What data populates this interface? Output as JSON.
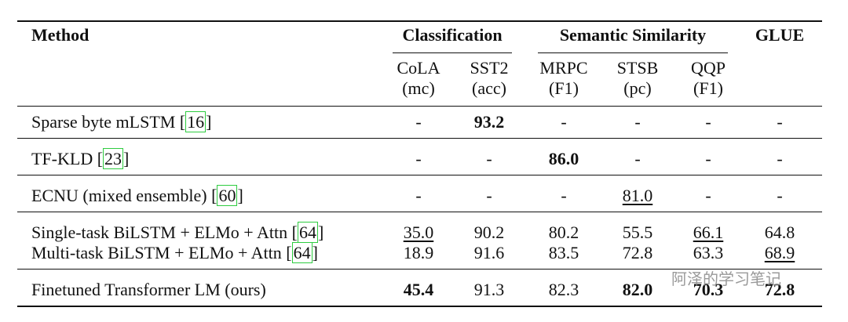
{
  "table": {
    "header": {
      "method": "Method",
      "groups": [
        {
          "label": "Classification",
          "columns": [
            {
              "name": "CoLA",
              "metric": "(mc)"
            },
            {
              "name": "SST2",
              "metric": "(acc)"
            }
          ]
        },
        {
          "label": "Semantic Similarity",
          "columns": [
            {
              "name": "MRPC",
              "metric": "(F1)"
            },
            {
              "name": "STSB",
              "metric": "(pc)"
            },
            {
              "name": "QQP",
              "metric": "(F1)"
            }
          ]
        },
        {
          "label": "GLUE",
          "columns": []
        }
      ]
    },
    "row_groups": [
      [
        {
          "method": "Sparse byte mLSTM",
          "citation": "16",
          "cells": [
            "-",
            {
              "text": "93.2",
              "style": "bold"
            },
            "-",
            "-",
            "-",
            "-"
          ]
        }
      ],
      [
        {
          "method": "TF-KLD",
          "citation": "23",
          "cells": [
            "-",
            "-",
            {
              "text": "86.0",
              "style": "bold"
            },
            "-",
            "-",
            "-"
          ]
        }
      ],
      [
        {
          "method": "ECNU (mixed ensemble)",
          "citation": "60",
          "cells": [
            "-",
            "-",
            "-",
            {
              "text": "81.0",
              "style": "underline"
            },
            "-",
            "-"
          ]
        }
      ],
      [
        {
          "method": "Single-task BiLSTM + ELMo + Attn",
          "citation": "64",
          "cells": [
            {
              "text": "35.0",
              "style": "underline"
            },
            "90.2",
            "80.2",
            "55.5",
            {
              "text": "66.1",
              "style": "underline"
            },
            "64.8"
          ]
        },
        {
          "method": "Multi-task BiLSTM + ELMo + Attn",
          "citation": "64",
          "cells": [
            "18.9",
            "91.6",
            "83.5",
            "72.8",
            "63.3",
            {
              "text": "68.9",
              "style": "underline"
            }
          ]
        }
      ],
      [
        {
          "method": "Finetuned Transformer LM (ours)",
          "cells": [
            {
              "text": "45.4",
              "style": "bold"
            },
            "91.3",
            "82.3",
            {
              "text": "82.0",
              "style": "bold"
            },
            {
              "text": "70.3",
              "style": "bold"
            },
            {
              "text": "72.8",
              "style": "bold"
            }
          ]
        }
      ]
    ],
    "watermark": "阿泽的学习笔记"
  }
}
